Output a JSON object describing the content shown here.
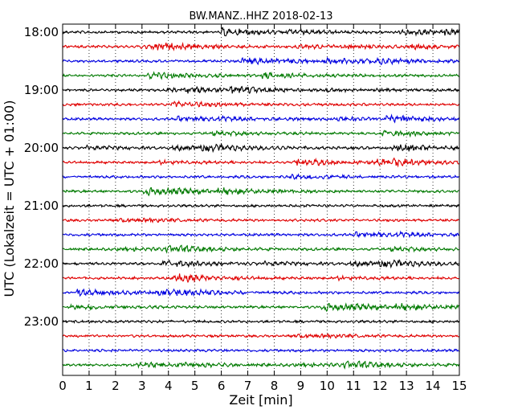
{
  "chart_data": {
    "type": "line",
    "chart_kind": "helicorder",
    "title": "BW.MANZ..HHZ 2018-02-13",
    "xlabel": "Zeit  [min]",
    "ylabel": "UTC (Lokalzeit = UTC + 01:00)",
    "xlim": [
      0,
      15
    ],
    "x_ticks": [
      "0",
      "1",
      "2",
      "3",
      "4",
      "5",
      "6",
      "7",
      "8",
      "9",
      "10",
      "11",
      "12",
      "13",
      "14",
      "15"
    ],
    "y_ticks": [
      "18:00",
      "19:00",
      "20:00",
      "21:00",
      "22:00",
      "23:00"
    ],
    "grid": "vertical dotted lines at each minute",
    "start_time": "18:00",
    "line_minutes": 15,
    "line_count": 24,
    "trace_colors": [
      "#000000",
      "#e00000",
      "#0000e0",
      "#007a00"
    ],
    "trace_amplitude": "low-amplitude continuous seismic noise on every line"
  }
}
